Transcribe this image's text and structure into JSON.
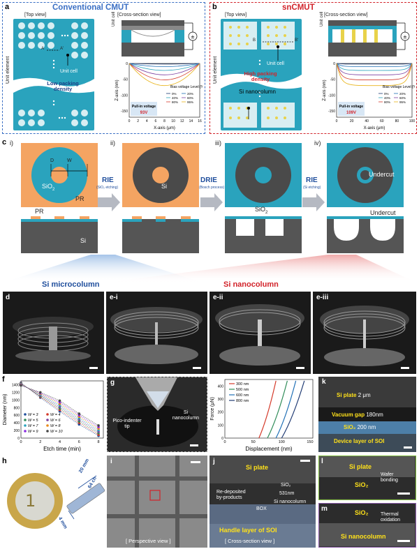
{
  "panel_a": {
    "letter": "a",
    "title": "Conventional CMUT",
    "top_view": "[Top view]",
    "cross_view": "[Cross-section view]",
    "unit_element": "Unit element",
    "unit_cell": "Unit cell",
    "unit_cell_side": "Unit cell",
    "point_a": "A",
    "point_a2": "A'",
    "density": "Low packing density",
    "chart": {
      "type": "line",
      "ylabel": "Z-axis (nm)",
      "xlabel": "X-axis (μm)",
      "xticks": [
        "0",
        "2",
        "4",
        "6",
        "8",
        "10",
        "12",
        "14",
        "16"
      ],
      "yticks": [
        "0",
        "-50",
        "-100",
        "-150"
      ],
      "legend_title": "Bias voltage Level (%)",
      "legend": [
        "0%",
        "20%",
        "40%",
        "60%",
        "80%",
        "95%"
      ],
      "pull_in_label": "Pull-in voltage",
      "pull_in_value": "93V"
    }
  },
  "panel_b": {
    "letter": "b",
    "title": "snCMUT",
    "top_view": "[Top view]",
    "cross_view": "[Cross-section view]",
    "unit_element": "Unit element",
    "unit_cell": "Unit cell",
    "unit_cell_side": "Unit cell",
    "point_b": "B",
    "point_b2": "B'",
    "density": "High packing density",
    "si_nanocolumn": "Si nanocolumn",
    "chart": {
      "type": "line",
      "ylabel": "Z-axis (nm)",
      "xlabel": "X-axis (μm)",
      "xticks": [
        "0",
        "20",
        "40",
        "60",
        "80",
        "100"
      ],
      "yticks": [
        "0",
        "-50",
        "-100",
        "-150"
      ],
      "legend_title": "Bias voltage Level (%)",
      "legend": [
        "0%",
        "20%",
        "40%",
        "60%",
        "80%",
        "95%"
      ],
      "pull_in_label": "Pull-in voltage",
      "pull_in_value": "109V"
    }
  },
  "panel_c": {
    "letter": "c",
    "steps": [
      "i)",
      "ii)",
      "iii)",
      "iv)"
    ],
    "d_label": "D",
    "w_label": "W",
    "sio2": "SiO",
    "sio2_sub": "2",
    "pr": "PR",
    "pr2": "PR",
    "si": "Si",
    "si2": "Si",
    "sio2_b": "SiO",
    "sio2_b_sub": "2",
    "undercut": "Undercut",
    "undercut2": "Undercut",
    "arrow1": "RIE",
    "arrow1_sub": "(SiO₂ etching)",
    "arrow2": "DRIE",
    "arrow2_sub": "(Bosch process)",
    "arrow3": "RIE",
    "arrow3_sub": "(Si etching)"
  },
  "banner": {
    "left": "Si microcolumn",
    "right": "Si nanocolumn"
  },
  "sem_row": [
    "d",
    "e-i",
    "e-ii",
    "e-iii"
  ],
  "panel_f": {
    "letter": "f",
    "chart": {
      "type": "scatter",
      "ylabel": "Diameter (nm)",
      "xlabel": "Etch time (min)",
      "xticks": [
        "0",
        "2",
        "4",
        "6",
        "8"
      ],
      "yticks": [
        "0",
        "200",
        "400",
        "600",
        "800",
        "1000",
        "1200",
        "1400"
      ],
      "ylim": [
        0,
        1500
      ],
      "xlim": [
        0,
        8.5
      ],
      "x": [
        0,
        2,
        4,
        6,
        8
      ],
      "series": [
        {
          "name": "W = 3",
          "color": "#1f4e9c",
          "values": [
            1450,
            1060,
            700,
            360,
            60
          ]
        },
        {
          "name": "W = 4",
          "color": "#d43a2a",
          "values": [
            1440,
            1080,
            740,
            400,
            90
          ]
        },
        {
          "name": "W = 5",
          "color": "#2e8b57",
          "values": [
            1430,
            1100,
            780,
            440,
            130
          ]
        },
        {
          "name": "W = 6",
          "color": "#7b3fa0",
          "values": [
            1420,
            1120,
            820,
            480,
            170
          ]
        },
        {
          "name": "W = 7",
          "color": "#2aa3bd",
          "values": [
            1410,
            1140,
            860,
            520,
            210
          ]
        },
        {
          "name": "W = 8",
          "color": "#e88a1a",
          "values": [
            1400,
            1160,
            900,
            560,
            250
          ]
        },
        {
          "name": "W = 9",
          "color": "#8a2be2",
          "values": [
            1390,
            1180,
            940,
            600,
            290
          ]
        },
        {
          "name": "W = 10",
          "color": "#444444",
          "values": [
            1380,
            1200,
            980,
            640,
            330
          ]
        }
      ]
    }
  },
  "panel_g": {
    "letter": "g",
    "tip": "Pico-indenter tip",
    "column": "Si nanocolumn",
    "chart": {
      "type": "line",
      "ylabel": "Force (μN)",
      "xlabel": "Displacement (nm)",
      "xticks": [
        "0",
        "50",
        "100",
        "150"
      ],
      "yticks": [
        "0",
        "100",
        "200",
        "300",
        "400"
      ],
      "series": [
        {
          "name": "300 nm",
          "color": "#d43a2a"
        },
        {
          "name": "500 nm",
          "color": "#2e8b57"
        },
        {
          "name": "600 nm",
          "color": "#1f6fb5"
        },
        {
          "name": "800 nm",
          "color": "#1f3a73"
        }
      ]
    }
  },
  "panel_k": {
    "letter": "k",
    "layers": [
      {
        "name": "Si plate",
        "value": "2 μm"
      },
      {
        "name": "Vacuum gap",
        "value": "180nm"
      },
      {
        "name": "SiO₂",
        "value": "200 nm"
      },
      {
        "name": "Device layer of SOI",
        "value": ""
      }
    ]
  },
  "panel_h": {
    "letter": "h",
    "dim1": "20 mm",
    "dim2": "4 mm",
    "dim3": "64 ch"
  },
  "panel_i": {
    "letter": "i",
    "caption": "[ Perspective view ]"
  },
  "panel_j": {
    "letter": "j",
    "si_plate": "Si plate",
    "sio2": "SiO₂",
    "si_nano": "Si nanocolumn",
    "width": "531nm",
    "redep": "Re-deposited by-products",
    "box": "BOX",
    "handle": "Handle layer of SOI",
    "caption": "[ Cross-section view ]"
  },
  "panel_l": {
    "letter": "l",
    "top": "Si plate",
    "bottom": "SiO₂",
    "note": "Wafer bonding"
  },
  "panel_m": {
    "letter": "m",
    "top": "SiO₂",
    "bottom": "Si nanocolumn",
    "note": "Thermal oxidation"
  }
}
